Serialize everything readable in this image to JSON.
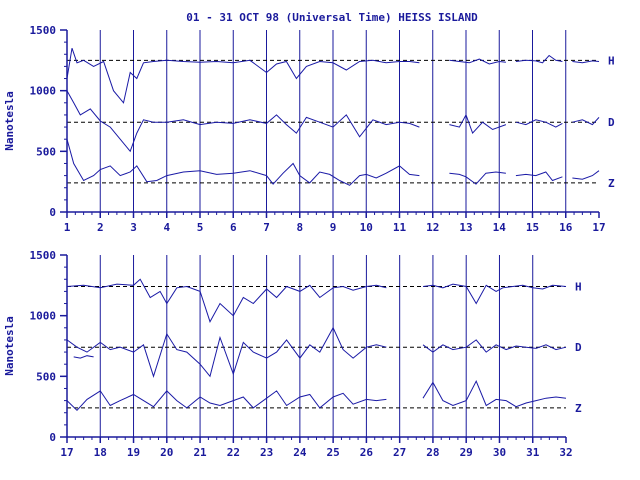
{
  "title": "01 - 31 OCT 98 (Universal Time) HEISS ISLAND",
  "colors": {
    "ink": "#1a1a9c",
    "trace": "#1a1aa6",
    "background": "#ffffff"
  },
  "chart_data": [
    {
      "type": "line",
      "panel": "top",
      "title": "01 - 31 OCT 98 (Universal Time) HEISS ISLAND",
      "ylabel": "Nanotesla",
      "xlabel": "",
      "xlim": [
        1,
        17
      ],
      "ylim": [
        0,
        1500
      ],
      "x_ticks": [
        1,
        2,
        3,
        4,
        5,
        6,
        7,
        8,
        9,
        10,
        11,
        12,
        13,
        14,
        15,
        16,
        17
      ],
      "y_ticks": [
        0,
        500,
        1000,
        1500
      ],
      "grid": "vertical lines at day boundaries",
      "series": [
        {
          "name": "H",
          "baseline": 1250,
          "x": [
            1,
            1.15,
            1.3,
            1.5,
            1.8,
            2.1,
            2.4,
            2.7,
            2.9,
            3.1,
            3.3,
            3.6,
            4,
            4.5,
            5,
            5.5,
            6,
            6.5,
            7,
            7.3,
            7.6,
            7.9,
            8.2,
            8.6,
            9,
            9.4,
            9.8,
            10.2,
            10.6,
            11,
            11.3,
            11.6
          ],
          "y": [
            1100,
            1350,
            1230,
            1250,
            1200,
            1240,
            1000,
            900,
            1150,
            1100,
            1230,
            1240,
            1250,
            1240,
            1235,
            1240,
            1230,
            1250,
            1150,
            1220,
            1240,
            1100,
            1200,
            1240,
            1230,
            1170,
            1240,
            1250,
            1230,
            1240,
            1240,
            1230
          ]
        },
        {
          "name": "H",
          "baseline": 1250,
          "x": [
            12.5,
            12.8,
            13.1,
            13.4,
            13.7,
            14,
            14.2
          ],
          "y": [
            1250,
            1240,
            1230,
            1260,
            1220,
            1240,
            1235
          ]
        },
        {
          "name": "H",
          "baseline": 1250,
          "x": [
            14.5,
            14.8,
            15.1,
            15.3,
            15.5,
            15.7,
            15.9
          ],
          "y": [
            1240,
            1250,
            1245,
            1230,
            1290,
            1250,
            1240
          ]
        },
        {
          "name": "H",
          "baseline": 1250,
          "x": [
            16.2,
            16.5,
            16.8,
            17
          ],
          "y": [
            1240,
            1230,
            1245,
            1240
          ]
        },
        {
          "name": "D",
          "baseline": 740,
          "x": [
            1,
            1.2,
            1.4,
            1.7,
            2,
            2.3,
            2.6,
            2.9,
            3.1,
            3.3,
            3.6,
            4,
            4.5,
            5,
            5.5,
            6,
            6.5,
            7,
            7.3,
            7.6,
            7.9,
            8.2,
            8.6,
            9,
            9.4,
            9.8,
            10.2,
            10.6,
            11,
            11.3,
            11.6
          ],
          "y": [
            1000,
            900,
            800,
            850,
            750,
            700,
            600,
            500,
            650,
            760,
            740,
            740,
            760,
            720,
            740,
            730,
            760,
            730,
            800,
            720,
            650,
            780,
            740,
            700,
            800,
            620,
            760,
            720,
            740,
            730,
            700
          ]
        },
        {
          "name": "D",
          "baseline": 740,
          "x": [
            12.5,
            12.8,
            13,
            13.2,
            13.5,
            13.8,
            14.2
          ],
          "y": [
            720,
            700,
            800,
            650,
            740,
            680,
            720
          ]
        },
        {
          "name": "D",
          "baseline": 740,
          "x": [
            14.5,
            14.8,
            15.1,
            15.4,
            15.7,
            15.9
          ],
          "y": [
            740,
            720,
            760,
            740,
            700,
            730
          ]
        },
        {
          "name": "D",
          "baseline": 740,
          "x": [
            16.2,
            16.5,
            16.8,
            17
          ],
          "y": [
            740,
            760,
            720,
            780
          ]
        },
        {
          "name": "Z",
          "baseline": 240,
          "x": [
            1,
            1.2,
            1.5,
            1.8,
            2,
            2.3,
            2.6,
            2.9,
            3.1,
            3.4,
            3.7,
            4,
            4.5,
            5,
            5.5,
            6,
            6.5,
            7,
            7.2,
            7.5,
            7.8,
            8,
            8.3,
            8.6,
            8.9,
            9.2,
            9.5,
            9.8,
            10,
            10.3,
            10.6,
            11,
            11.3,
            11.6
          ],
          "y": [
            600,
            400,
            260,
            300,
            350,
            380,
            300,
            330,
            380,
            250,
            260,
            300,
            330,
            340,
            310,
            320,
            340,
            300,
            230,
            320,
            400,
            300,
            240,
            330,
            310,
            260,
            220,
            300,
            310,
            280,
            320,
            380,
            310,
            300
          ]
        },
        {
          "name": "Z",
          "baseline": 240,
          "x": [
            12.5,
            12.8,
            13,
            13.3,
            13.6,
            13.9,
            14.2
          ],
          "y": [
            320,
            310,
            290,
            230,
            320,
            330,
            320
          ]
        },
        {
          "name": "Z",
          "baseline": 240,
          "x": [
            14.5,
            14.8,
            15.1,
            15.4,
            15.6,
            15.9
          ],
          "y": [
            300,
            310,
            300,
            330,
            260,
            290
          ]
        },
        {
          "name": "Z",
          "baseline": 240,
          "x": [
            16.2,
            16.5,
            16.8,
            17
          ],
          "y": [
            280,
            270,
            300,
            340
          ]
        }
      ]
    },
    {
      "type": "line",
      "panel": "bottom",
      "title": "",
      "ylabel": "Nanotesla",
      "xlabel": "",
      "xlim": [
        17,
        32
      ],
      "ylim": [
        0,
        1500
      ],
      "x_ticks": [
        17,
        18,
        19,
        20,
        21,
        22,
        23,
        24,
        25,
        26,
        27,
        28,
        29,
        30,
        31,
        32
      ],
      "y_ticks": [
        0,
        500,
        1000,
        1500
      ],
      "grid": "vertical lines at day boundaries",
      "series": [
        {
          "name": "H",
          "baseline": 1240,
          "x": [
            17,
            17.5,
            18,
            18.5,
            19,
            19.2,
            19.5,
            19.8,
            20,
            20.3,
            20.6,
            21,
            21.3,
            21.6,
            22,
            22.3,
            22.6,
            23,
            23.3,
            23.6,
            24,
            24.3,
            24.6,
            25,
            25.3,
            25.6,
            26,
            26.3,
            26.6
          ],
          "y": [
            1240,
            1250,
            1230,
            1260,
            1250,
            1300,
            1150,
            1200,
            1100,
            1230,
            1240,
            1200,
            950,
            1100,
            1000,
            1150,
            1100,
            1220,
            1150,
            1240,
            1200,
            1250,
            1150,
            1230,
            1240,
            1210,
            1240,
            1250,
            1230
          ]
        },
        {
          "name": "H",
          "baseline": 1240,
          "x": [
            27.7,
            28,
            28.3,
            28.6,
            29,
            29.3,
            29.6,
            29.9,
            30.1,
            30.4,
            30.7,
            31,
            31.3,
            31.6,
            32
          ],
          "y": [
            1240,
            1250,
            1230,
            1260,
            1240,
            1100,
            1250,
            1200,
            1230,
            1240,
            1250,
            1230,
            1220,
            1250,
            1240
          ]
        },
        {
          "name": "D",
          "baseline": 740,
          "x": [
            17,
            17.3,
            17.6,
            18,
            18.3,
            18.6,
            19,
            19.3,
            19.6,
            20,
            20.3,
            20.6,
            21,
            21.3,
            21.6,
            22,
            22.3,
            22.6,
            23,
            23.3,
            23.6,
            24,
            24.3,
            24.6,
            25,
            25.3,
            25.6,
            26,
            26.3,
            26.6
          ],
          "y": [
            800,
            740,
            700,
            780,
            720,
            740,
            700,
            760,
            500,
            850,
            720,
            700,
            600,
            500,
            820,
            520,
            780,
            700,
            650,
            700,
            800,
            650,
            760,
            700,
            900,
            720,
            650,
            740,
            760,
            740
          ]
        },
        {
          "name": "D",
          "baseline": 740,
          "x": [
            27.7,
            28,
            28.3,
            28.6,
            29,
            29.3,
            29.6,
            29.9,
            30.2,
            30.5,
            30.8,
            31.1,
            31.4,
            31.7,
            32
          ],
          "y": [
            760,
            700,
            760,
            720,
            740,
            800,
            700,
            760,
            720,
            750,
            740,
            730,
            760,
            720,
            740
          ]
        },
        {
          "name": "D",
          "baseline": 740,
          "x": [
            17.2,
            17.4,
            17.6,
            17.8
          ],
          "y": [
            660,
            650,
            670,
            660
          ]
        },
        {
          "name": "Z",
          "baseline": 240,
          "x": [
            17,
            17.3,
            17.6,
            18,
            18.3,
            18.6,
            19,
            19.3,
            19.6,
            20,
            20.3,
            20.6,
            21,
            21.3,
            21.6,
            22,
            22.3,
            22.6,
            23,
            23.3,
            23.6,
            24,
            24.3,
            24.6,
            25,
            25.3,
            25.6,
            26,
            26.3,
            26.6
          ],
          "y": [
            300,
            220,
            310,
            380,
            260,
            300,
            350,
            300,
            250,
            380,
            300,
            240,
            330,
            280,
            260,
            300,
            330,
            240,
            320,
            380,
            260,
            330,
            350,
            240,
            330,
            360,
            270,
            310,
            300,
            310
          ]
        },
        {
          "name": "Z",
          "baseline": 240,
          "x": [
            27.7,
            28,
            28.3,
            28.6,
            29,
            29.3,
            29.6,
            29.9,
            30.2,
            30.5,
            30.8,
            31.1,
            31.4,
            31.7,
            32
          ],
          "y": [
            320,
            450,
            300,
            260,
            300,
            460,
            260,
            310,
            300,
            250,
            280,
            300,
            320,
            330,
            320
          ]
        }
      ]
    }
  ]
}
